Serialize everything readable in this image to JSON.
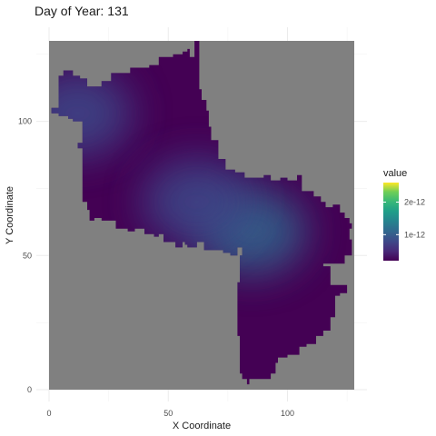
{
  "title": {
    "label": "Day of Year:",
    "value": "131"
  },
  "chart_data": {
    "type": "heatmap",
    "title": "Day of Year: 131",
    "xlabel": "X Coordinate",
    "ylabel": "Y Coordinate",
    "xlim": [
      0,
      128
    ],
    "ylim": [
      0,
      130
    ],
    "x_ticks": [
      0,
      50,
      100
    ],
    "x_tick_labels": [
      "0",
      "50",
      "100"
    ],
    "y_ticks": [
      0,
      50,
      100
    ],
    "y_tick_labels": [
      "0",
      "50",
      "100"
    ],
    "grid": true,
    "background_value_color": "#808080",
    "legend": {
      "title": "value",
      "placement": "right",
      "range": [
        2e-13,
        2.6e-12
      ],
      "breaks": [
        1e-12,
        2e-12
      ],
      "break_labels": [
        "1e-12",
        "2e-12"
      ],
      "colormap": "viridis"
    },
    "region": {
      "outline": [
        [
          1,
          105
        ],
        [
          4,
          105
        ],
        [
          4,
          109
        ],
        [
          4,
          117
        ],
        [
          6,
          119
        ],
        [
          9,
          119
        ],
        [
          10,
          117
        ],
        [
          13,
          116
        ],
        [
          16,
          113
        ],
        [
          18,
          113
        ],
        [
          22,
          115
        ],
        [
          26,
          118
        ],
        [
          30,
          118
        ],
        [
          34,
          120
        ],
        [
          38,
          120
        ],
        [
          42,
          121
        ],
        [
          46,
          124
        ],
        [
          52,
          125
        ],
        [
          56,
          126
        ],
        [
          58,
          127
        ],
        [
          59,
          124
        ],
        [
          61,
          130
        ],
        [
          63,
          126
        ],
        [
          63,
          112
        ],
        [
          64,
          108
        ],
        [
          66,
          104
        ],
        [
          67,
          98
        ],
        [
          68,
          93
        ],
        [
          71,
          86
        ],
        [
          74,
          82
        ],
        [
          78,
          81
        ],
        [
          82,
          79
        ],
        [
          86,
          79
        ],
        [
          90,
          80
        ],
        [
          93,
          78
        ],
        [
          97,
          79
        ],
        [
          100,
          78
        ],
        [
          104,
          80
        ],
        [
          106,
          74
        ],
        [
          111,
          72
        ],
        [
          114,
          70
        ],
        [
          116,
          68
        ],
        [
          119,
          69
        ],
        [
          122,
          66
        ],
        [
          124,
          64
        ],
        [
          126,
          62
        ],
        [
          127,
          60
        ],
        [
          128,
          60
        ],
        [
          126,
          56
        ],
        [
          127,
          50
        ],
        [
          124,
          47
        ],
        [
          122,
          47
        ],
        [
          120,
          47
        ],
        [
          118,
          47
        ],
        [
          115,
          45
        ],
        [
          110,
          44
        ],
        [
          107,
          44
        ],
        [
          103,
          43
        ],
        [
          100,
          45
        ],
        [
          98,
          43
        ],
        [
          97,
          40
        ],
        [
          94,
          40
        ],
        [
          93,
          46
        ],
        [
          95,
          46
        ],
        [
          103,
          47
        ],
        [
          110,
          49
        ],
        [
          114,
          46
        ],
        [
          118,
          43
        ],
        [
          118,
          39
        ],
        [
          125,
          38
        ],
        [
          125,
          36
        ],
        [
          122,
          35
        ],
        [
          120,
          27
        ],
        [
          118,
          22
        ],
        [
          115,
          20
        ],
        [
          112,
          17
        ],
        [
          108,
          16
        ],
        [
          105,
          13
        ],
        [
          100,
          12
        ],
        [
          96,
          10
        ],
        [
          95,
          6
        ],
        [
          93,
          4
        ],
        [
          90,
          4
        ],
        [
          88,
          4
        ],
        [
          87,
          4
        ],
        [
          84,
          2
        ],
        [
          83,
          4
        ],
        [
          81,
          6
        ],
        [
          80,
          10
        ],
        [
          80,
          20
        ],
        [
          79,
          30
        ],
        [
          79,
          40
        ],
        [
          80,
          50
        ],
        [
          81,
          53
        ],
        [
          79,
          50
        ],
        [
          76,
          51
        ],
        [
          73,
          52
        ],
        [
          70,
          52
        ],
        [
          65,
          55
        ],
        [
          62,
          53
        ],
        [
          60,
          53
        ],
        [
          58,
          54
        ],
        [
          57,
          55
        ],
        [
          56,
          53
        ],
        [
          53,
          55
        ],
        [
          50,
          55
        ],
        [
          48,
          58
        ],
        [
          46,
          57
        ],
        [
          44,
          58
        ],
        [
          42,
          58
        ],
        [
          40,
          60
        ],
        [
          38,
          60
        ],
        [
          36,
          59
        ],
        [
          33,
          60
        ],
        [
          28,
          63
        ],
        [
          25,
          63
        ],
        [
          22,
          64
        ],
        [
          19,
          63
        ],
        [
          17,
          67
        ],
        [
          16,
          70
        ],
        [
          14,
          80
        ],
        [
          14,
          90
        ],
        [
          12,
          92
        ],
        [
          14,
          100
        ],
        [
          10,
          101
        ],
        [
          8,
          102
        ],
        [
          4,
          103
        ],
        [
          1,
          102
        ]
      ],
      "hotspots": [
        {
          "x": 12,
          "y": 103,
          "value": 5e-13
        },
        {
          "x": 85,
          "y": 59,
          "value": 6e-13
        },
        {
          "x": 62,
          "y": 70,
          "value": 4.5e-13
        }
      ],
      "base_value": 2e-13
    },
    "value_min": 2e-13,
    "value_max": 2.6e-12
  }
}
